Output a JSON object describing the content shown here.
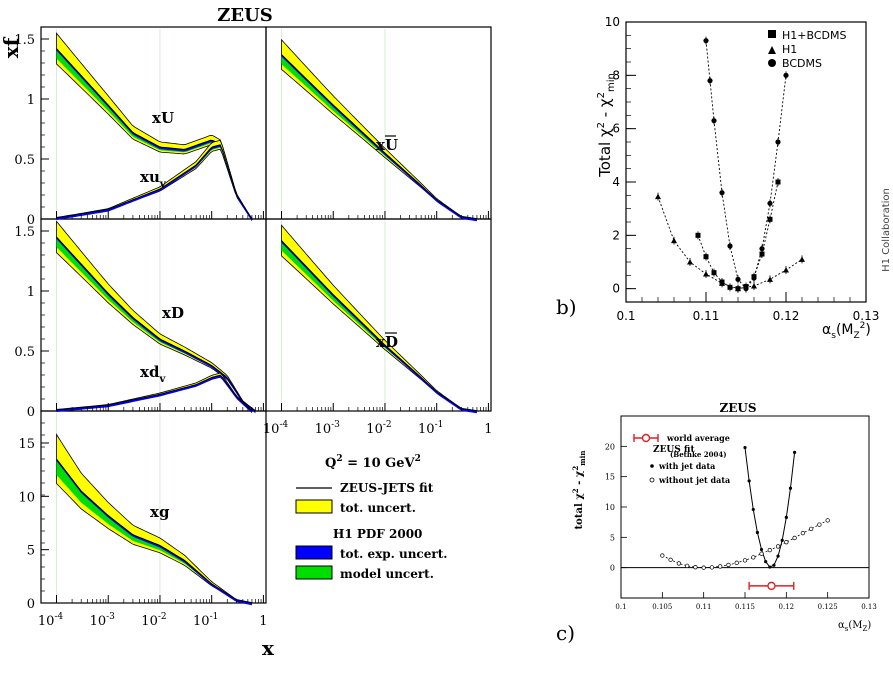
{
  "colors": {
    "tot_uncert": "#ffff00",
    "tot_exp_uncert": "#0000ff",
    "model_uncert": "#00dd00",
    "world_average": "#e02020"
  },
  "chart_data": [
    {
      "id": "a",
      "type": "area",
      "title": "ZEUS",
      "ylabel": "xf",
      "xlabel": "x",
      "x_scale": "log",
      "x_ticks": [
        "10",
        "10",
        "10",
        "10",
        "1"
      ],
      "x_tick_exps": [
        "-4",
        "-3",
        "-2",
        "-1",
        ""
      ],
      "annotation": "Q2 = 10 GeV2",
      "annotation_parts": [
        "Q",
        "2",
        " = 10 GeV",
        "2"
      ],
      "legend": {
        "zeus_fit": "ZEUS-JETS fit",
        "tot_uncert": "tot. uncert.",
        "h1_header": "H1 PDF 2000",
        "tot_exp_uncert": "tot. exp. uncert.",
        "model_uncert": "model uncert."
      },
      "panels": [
        {
          "id": "xU",
          "label_main": "xU",
          "label_sub": "",
          "ylim": [
            0,
            1.6
          ],
          "y_ticks": [
            "0",
            "0.5",
            "1",
            "1.5"
          ],
          "x": [
            0.0001,
            0.001,
            0.003,
            0.01,
            0.03,
            0.1,
            0.15,
            0.3,
            0.6
          ],
          "y": [
            1.42,
            0.95,
            0.72,
            0.6,
            0.58,
            0.66,
            0.62,
            0.2,
            0.0
          ]
        },
        {
          "id": "xuv",
          "label_main": "xu",
          "label_sub": "v",
          "ylim": [
            0,
            1.6
          ],
          "x": [
            0.0001,
            0.001,
            0.01,
            0.05,
            0.1,
            0.15,
            0.3,
            0.6
          ],
          "y": [
            0.01,
            0.08,
            0.25,
            0.45,
            0.6,
            0.62,
            0.2,
            0.0
          ]
        },
        {
          "id": "xUbar",
          "label_main": "xU",
          "label_sub": "",
          "overline": true,
          "ylim": [
            0,
            1.6
          ],
          "x": [
            0.0001,
            0.001,
            0.01,
            0.05,
            0.1,
            0.3,
            0.6
          ],
          "y": [
            1.37,
            0.95,
            0.55,
            0.28,
            0.16,
            0.02,
            0.0
          ]
        },
        {
          "id": "xD",
          "label_main": "xD",
          "label_sub": "",
          "ylim": [
            0,
            1.6
          ],
          "y_ticks": [
            "0",
            "0.5",
            "1",
            "1.5"
          ],
          "x": [
            0.0001,
            0.001,
            0.003,
            0.01,
            0.03,
            0.1,
            0.2,
            0.4,
            0.7
          ],
          "y": [
            1.45,
            0.98,
            0.78,
            0.6,
            0.5,
            0.38,
            0.28,
            0.08,
            0.0
          ]
        },
        {
          "id": "xdv",
          "label_main": "xd",
          "label_sub": "v",
          "ylim": [
            0,
            1.6
          ],
          "x": [
            0.0001,
            0.001,
            0.01,
            0.05,
            0.1,
            0.15,
            0.3,
            0.6
          ],
          "y": [
            0.01,
            0.05,
            0.14,
            0.22,
            0.28,
            0.3,
            0.12,
            0.0
          ]
        },
        {
          "id": "xDbar",
          "label_main": "xD",
          "label_sub": "",
          "overline": true,
          "ylim": [
            0,
            1.6
          ],
          "x": [
            0.0001,
            0.001,
            0.01,
            0.05,
            0.1,
            0.3,
            0.6
          ],
          "y": [
            1.42,
            0.97,
            0.55,
            0.28,
            0.16,
            0.02,
            0.0
          ]
        },
        {
          "id": "xg",
          "label_main": "xg",
          "label_sub": "",
          "ylim": [
            0,
            18
          ],
          "y_ticks": [
            "0",
            "5",
            "10",
            "15"
          ],
          "x": [
            0.0001,
            0.0003,
            0.001,
            0.003,
            0.01,
            0.03,
            0.1,
            0.3,
            0.6
          ],
          "y": [
            13.5,
            10.5,
            8.2,
            6.4,
            5.4,
            4.0,
            1.8,
            0.3,
            0.0
          ]
        }
      ]
    },
    {
      "id": "b",
      "type": "scatter",
      "panel_label": "b)",
      "ylabel": "Total χ² - χ²min",
      "ylabel_parts": [
        "Total χ",
        "2",
        " - χ",
        "2",
        "min"
      ],
      "xlabel": "αs(MZ²)",
      "xlabel_parts": [
        "α",
        "s",
        "(M",
        "Z",
        "2",
        ")"
      ],
      "xlim": [
        0.1,
        0.13
      ],
      "ylim": [
        -0.5,
        10
      ],
      "x_ticks": [
        "0.1",
        "0.11",
        "0.12",
        "0.13"
      ],
      "y_ticks": [
        "0",
        "2",
        "4",
        "6",
        "8",
        "10"
      ],
      "side_note": "H1 Collaboration",
      "series": [
        {
          "name": "H1+BCDMS",
          "marker": "square",
          "x": [
            0.109,
            0.11,
            0.111,
            0.112,
            0.113,
            0.114,
            0.115,
            0.116,
            0.117,
            0.118,
            0.119
          ],
          "y": [
            2.0,
            1.2,
            0.6,
            0.25,
            0.05,
            0.0,
            0.08,
            0.45,
            1.3,
            2.6,
            4.0
          ]
        },
        {
          "name": "H1",
          "marker": "triangle",
          "x": [
            0.104,
            0.106,
            0.108,
            0.11,
            0.112,
            0.114,
            0.116,
            0.118,
            0.12,
            0.122
          ],
          "y": [
            3.45,
            1.8,
            1.0,
            0.55,
            0.2,
            0.0,
            0.1,
            0.35,
            0.7,
            1.1
          ]
        },
        {
          "name": "BCDMS",
          "marker": "circle",
          "x": [
            0.11,
            0.1105,
            0.111,
            0.112,
            0.113,
            0.114,
            0.115,
            0.116,
            0.117,
            0.118,
            0.119,
            0.12
          ],
          "y": [
            9.3,
            7.8,
            6.3,
            3.6,
            1.6,
            0.35,
            0.0,
            0.4,
            1.5,
            3.2,
            5.5,
            8.0
          ]
        }
      ]
    },
    {
      "id": "c",
      "type": "line",
      "panel_label": "c)",
      "title": "ZEUS",
      "ylabel": "total χ² - χ²min",
      "ylabel_parts": [
        "total χ",
        "2",
        " - χ",
        "2",
        "min"
      ],
      "xlabel": "αs(MZ)",
      "xlabel_parts": [
        "α",
        "s",
        "(M",
        "Z",
        ")"
      ],
      "xlim": [
        0.1,
        0.13
      ],
      "ylim": [
        -5,
        25
      ],
      "x_ticks": [
        "0.1",
        "0.105",
        "0.11",
        "0.115",
        "0.12",
        "0.125",
        "0.13"
      ],
      "y_ticks": [
        "0",
        "5",
        "10",
        "15",
        "20"
      ],
      "legend_title": "ZEUS fit",
      "world_average_label": "world average",
      "world_average_ref": "(Bethke 2004)",
      "world_average": {
        "center": 0.1182,
        "err": 0.0027
      },
      "series": [
        {
          "name": "with jet data",
          "marker": "filled",
          "x": [
            0.115,
            0.1155,
            0.116,
            0.1165,
            0.117,
            0.1175,
            0.118,
            0.1185,
            0.119,
            0.1195,
            0.12,
            0.1205,
            0.121
          ],
          "y": [
            19.8,
            14.3,
            9.6,
            5.8,
            3.0,
            1.0,
            0.1,
            0.4,
            1.9,
            4.5,
            8.3,
            13.1,
            19.0
          ]
        },
        {
          "name": "without jet data",
          "marker": "open",
          "x": [
            0.105,
            0.106,
            0.107,
            0.108,
            0.109,
            0.11,
            0.111,
            0.112,
            0.113,
            0.114,
            0.115,
            0.116,
            0.117,
            0.118,
            0.119,
            0.12,
            0.121,
            0.122,
            0.123,
            0.124,
            0.125
          ],
          "y": [
            2.0,
            1.3,
            0.7,
            0.3,
            0.08,
            0.0,
            0.05,
            0.2,
            0.45,
            0.8,
            1.2,
            1.7,
            2.3,
            2.9,
            3.5,
            4.2,
            4.9,
            5.7,
            6.4,
            7.1,
            7.8
          ]
        }
      ]
    }
  ]
}
